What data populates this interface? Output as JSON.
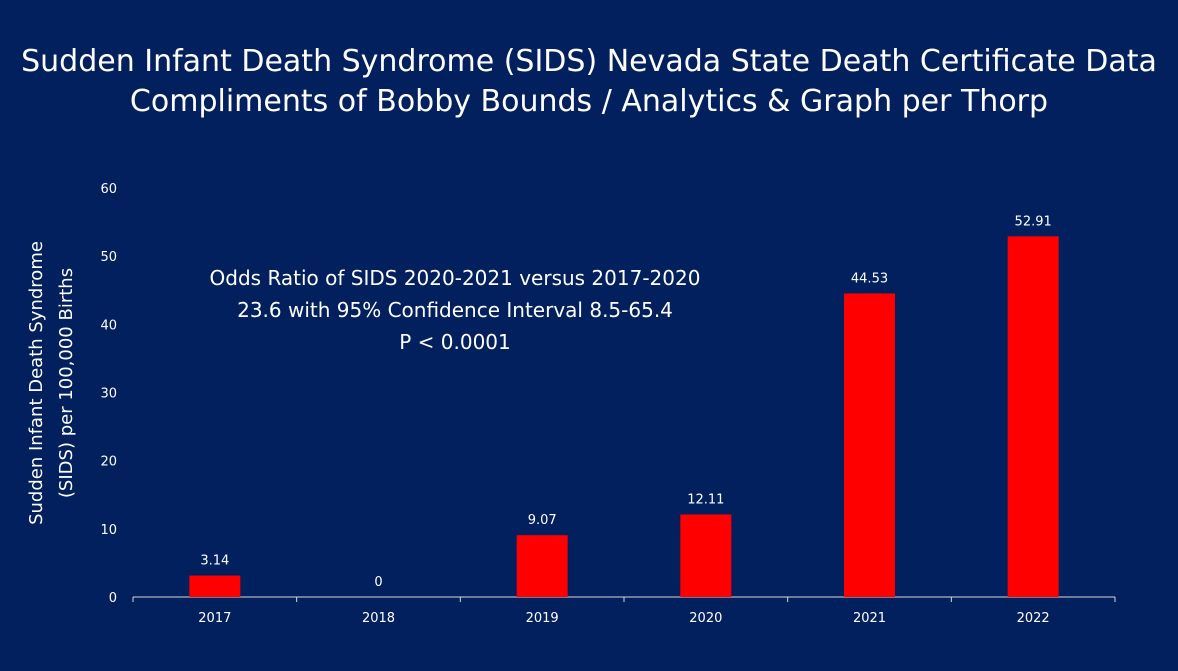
{
  "colors": {
    "background": "#02205e",
    "bar": "#ff0000",
    "axis": "#d9d9d9",
    "text": "#ffffff"
  },
  "chart_data": {
    "type": "bar",
    "title": [
      "Sudden Infant Death Syndrome (SIDS) Nevada State Death Certificate Data",
      "Compliments of Bobby Bounds / Analytics & Graph per Thorp"
    ],
    "ylabel": [
      "Sudden Infant Death Syndrome",
      "(SIDS) per 100,000 Births"
    ],
    "xlabel": "",
    "categories": [
      "2017",
      "2018",
      "2019",
      "2020",
      "2021",
      "2022"
    ],
    "values": [
      3.14,
      0,
      9.07,
      12.11,
      44.53,
      52.91
    ],
    "data_labels": [
      "3.14",
      "0",
      "9.07",
      "12.11",
      "44.53",
      "52.91"
    ],
    "ylim": [
      0,
      60
    ],
    "yticks": [
      0,
      10,
      20,
      30,
      40,
      50,
      60
    ],
    "grid": false,
    "legend": "none",
    "annotation": [
      "Odds Ratio of SIDS 2020-2021 versus 2017-2020",
      "23.6 with 95% Confidence Interval 8.5-65.4",
      "P < 0.0001"
    ]
  }
}
